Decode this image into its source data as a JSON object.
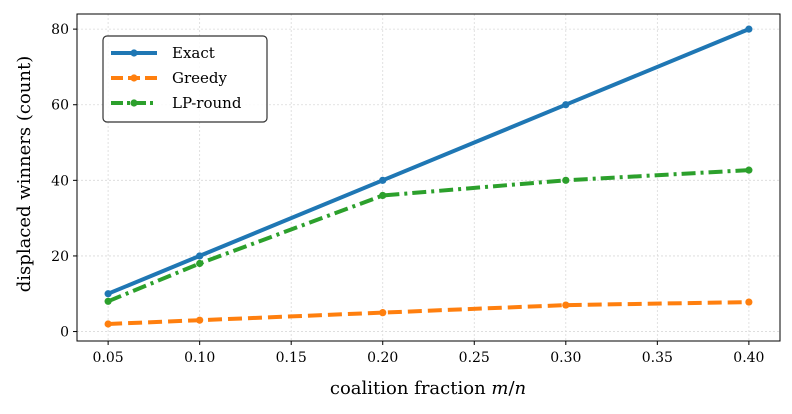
{
  "chart_data": {
    "type": "line",
    "x": [
      0.05,
      0.1,
      0.2,
      0.3,
      0.4
    ],
    "x_tick_values": [
      0.05,
      0.1,
      0.15,
      0.2,
      0.25,
      0.3,
      0.35,
      0.4
    ],
    "x_tick_labels": [
      "0.05",
      "0.10",
      "0.15",
      "0.20",
      "0.25",
      "0.30",
      "0.35",
      "0.40"
    ],
    "y_tick_values": [
      0,
      20,
      40,
      60,
      80
    ],
    "y_tick_labels": [
      "0",
      "20",
      "40",
      "60",
      "80"
    ],
    "xlim": [
      0.033,
      0.417
    ],
    "ylim": [
      -2.5,
      84
    ],
    "xlabel": "coalition fraction m/n",
    "ylabel": "displaced winners (count)",
    "grid": true,
    "legend_position": "top-left",
    "series": [
      {
        "name": "Exact",
        "color": "#1f77b4",
        "style": "solid",
        "values": [
          10,
          20,
          40,
          60,
          80
        ]
      },
      {
        "name": "Greedy",
        "color": "#ff7f0e",
        "style": "dashed",
        "values": [
          2,
          3,
          5,
          7,
          7.8
        ]
      },
      {
        "name": "LP-round",
        "color": "#2ca02c",
        "style": "dashdot",
        "values": [
          8,
          18,
          36,
          40,
          42.7
        ]
      }
    ]
  }
}
